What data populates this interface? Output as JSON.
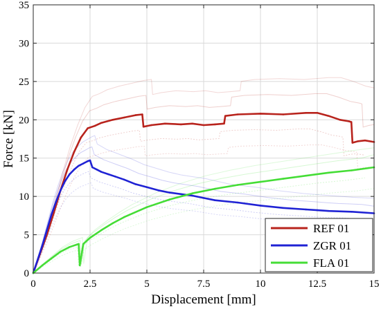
{
  "chart_data": {
    "type": "line",
    "title": "",
    "xlabel": "Displacement [mm]",
    "ylabel": "Force [kN]",
    "xlim": [
      0,
      15
    ],
    "ylim": [
      0,
      35
    ],
    "xticks": [
      0,
      2.5,
      5,
      7.5,
      10,
      12.5,
      15
    ],
    "yticks": [
      0,
      5,
      10,
      15,
      20,
      25,
      30,
      35
    ],
    "xtick_labels": [
      "0",
      "2.5",
      "5",
      "7.5",
      "10",
      "12.5",
      "15"
    ],
    "ytick_labels": [
      "0",
      "5",
      "10",
      "15",
      "20",
      "25",
      "30",
      "35"
    ],
    "grid": true,
    "legend_position": "bottom-right",
    "series": [
      {
        "name": "REF 01",
        "color": "#b8231c",
        "x": [
          0,
          0.3,
          0.6,
          0.9,
          1.2,
          1.5,
          1.8,
          2.1,
          2.4,
          2.7,
          3.0,
          3.5,
          4.0,
          4.5,
          4.8,
          4.85,
          5.2,
          5.8,
          6.5,
          7.0,
          7.5,
          8.0,
          8.4,
          8.45,
          9.0,
          10.0,
          11.0,
          12.0,
          12.5,
          13.0,
          13.5,
          13.9,
          14.0,
          14.05,
          14.3,
          14.6,
          15.0
        ],
        "y": [
          0,
          2.5,
          5.0,
          7.8,
          10.8,
          13.5,
          15.8,
          17.7,
          18.9,
          19.2,
          19.6,
          20.0,
          20.3,
          20.6,
          20.7,
          19.1,
          19.3,
          19.5,
          19.4,
          19.5,
          19.3,
          19.4,
          19.5,
          20.5,
          20.7,
          20.8,
          20.7,
          20.9,
          20.9,
          20.5,
          20.0,
          19.8,
          19.7,
          17.0,
          17.2,
          17.3,
          17.1
        ]
      },
      {
        "name": "ZGR 01",
        "color": "#1f22d4",
        "x": [
          0,
          0.2,
          0.4,
          0.6,
          0.8,
          1.0,
          1.2,
          1.4,
          1.6,
          1.8,
          2.0,
          2.2,
          2.4,
          2.5,
          2.6,
          2.8,
          3.0,
          3.3,
          3.6,
          4.0,
          4.5,
          5.0,
          5.5,
          6.0,
          6.5,
          7.0,
          7.5,
          8.0,
          9.0,
          10.0,
          11.0,
          12.0,
          12.5,
          13.0,
          14.0,
          15.0
        ],
        "y": [
          0,
          1.8,
          3.6,
          5.6,
          7.6,
          9.3,
          10.8,
          12.0,
          12.9,
          13.5,
          14.0,
          14.3,
          14.6,
          14.7,
          13.8,
          13.5,
          13.2,
          12.9,
          12.6,
          12.2,
          11.6,
          11.2,
          10.8,
          10.5,
          10.3,
          10.1,
          9.8,
          9.5,
          9.2,
          8.8,
          8.5,
          8.3,
          8.2,
          8.1,
          8.0,
          7.8
        ]
      },
      {
        "name": "FLA 01",
        "color": "#44dd35",
        "x": [
          0,
          0.4,
          0.8,
          1.2,
          1.6,
          1.9,
          2.0,
          2.05,
          2.2,
          2.5,
          3.0,
          3.5,
          4.0,
          5.0,
          6.0,
          7.0,
          8.0,
          9.0,
          10.0,
          11.0,
          12.0,
          13.0,
          14.0,
          15.0
        ],
        "y": [
          0,
          1.0,
          1.9,
          2.8,
          3.4,
          3.7,
          3.8,
          1.0,
          3.8,
          4.6,
          5.6,
          6.5,
          7.3,
          8.6,
          9.6,
          10.4,
          11.0,
          11.5,
          11.9,
          12.3,
          12.7,
          13.1,
          13.4,
          13.8
        ]
      }
    ]
  }
}
